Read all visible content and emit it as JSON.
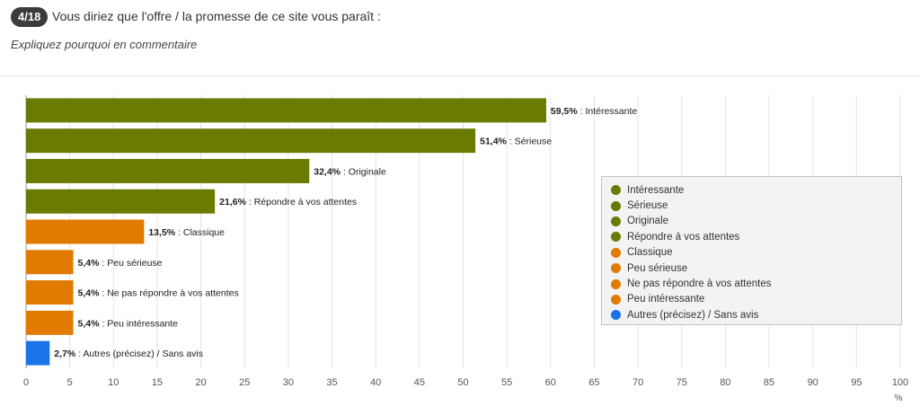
{
  "header": {
    "badge": "4/18",
    "question": "Vous diriez que l'offre / la promesse de ce site vous paraît :",
    "subtitle": "Expliquez pourquoi en commentaire"
  },
  "colors": {
    "green": "#6b7a00",
    "orange": "#e07b00",
    "blue": "#1a73e8"
  },
  "chart_data": {
    "type": "bar",
    "orientation": "horizontal",
    "categories": [
      "Intéressante",
      "Sérieuse",
      "Originale",
      "Répondre à vos attentes",
      "Classique",
      "Peu sérieuse",
      "Ne pas répondre à vos attentes",
      "Peu intéressante",
      "Autres (précisez) / Sans avis"
    ],
    "values": [
      59.5,
      51.4,
      32.4,
      21.6,
      13.5,
      5.4,
      5.4,
      5.4,
      2.7
    ],
    "value_labels": [
      "59,5%",
      "51,4%",
      "32,4%",
      "21,6%",
      "13,5%",
      "5,4%",
      "5,4%",
      "5,4%",
      "2,7%"
    ],
    "bar_colors": [
      "#6b7a00",
      "#6b7a00",
      "#6b7a00",
      "#6b7a00",
      "#e07b00",
      "#e07b00",
      "#e07b00",
      "#e07b00",
      "#1a73e8"
    ],
    "xticks": [
      "0",
      "5",
      "10",
      "15",
      "20",
      "25",
      "30",
      "35",
      "40",
      "45",
      "50",
      "55",
      "60",
      "65",
      "70",
      "75",
      "80",
      "85",
      "90",
      "95",
      "100"
    ],
    "xlim": [
      0,
      100
    ],
    "xlabel": "%",
    "grid": true,
    "legend_position": "right"
  }
}
